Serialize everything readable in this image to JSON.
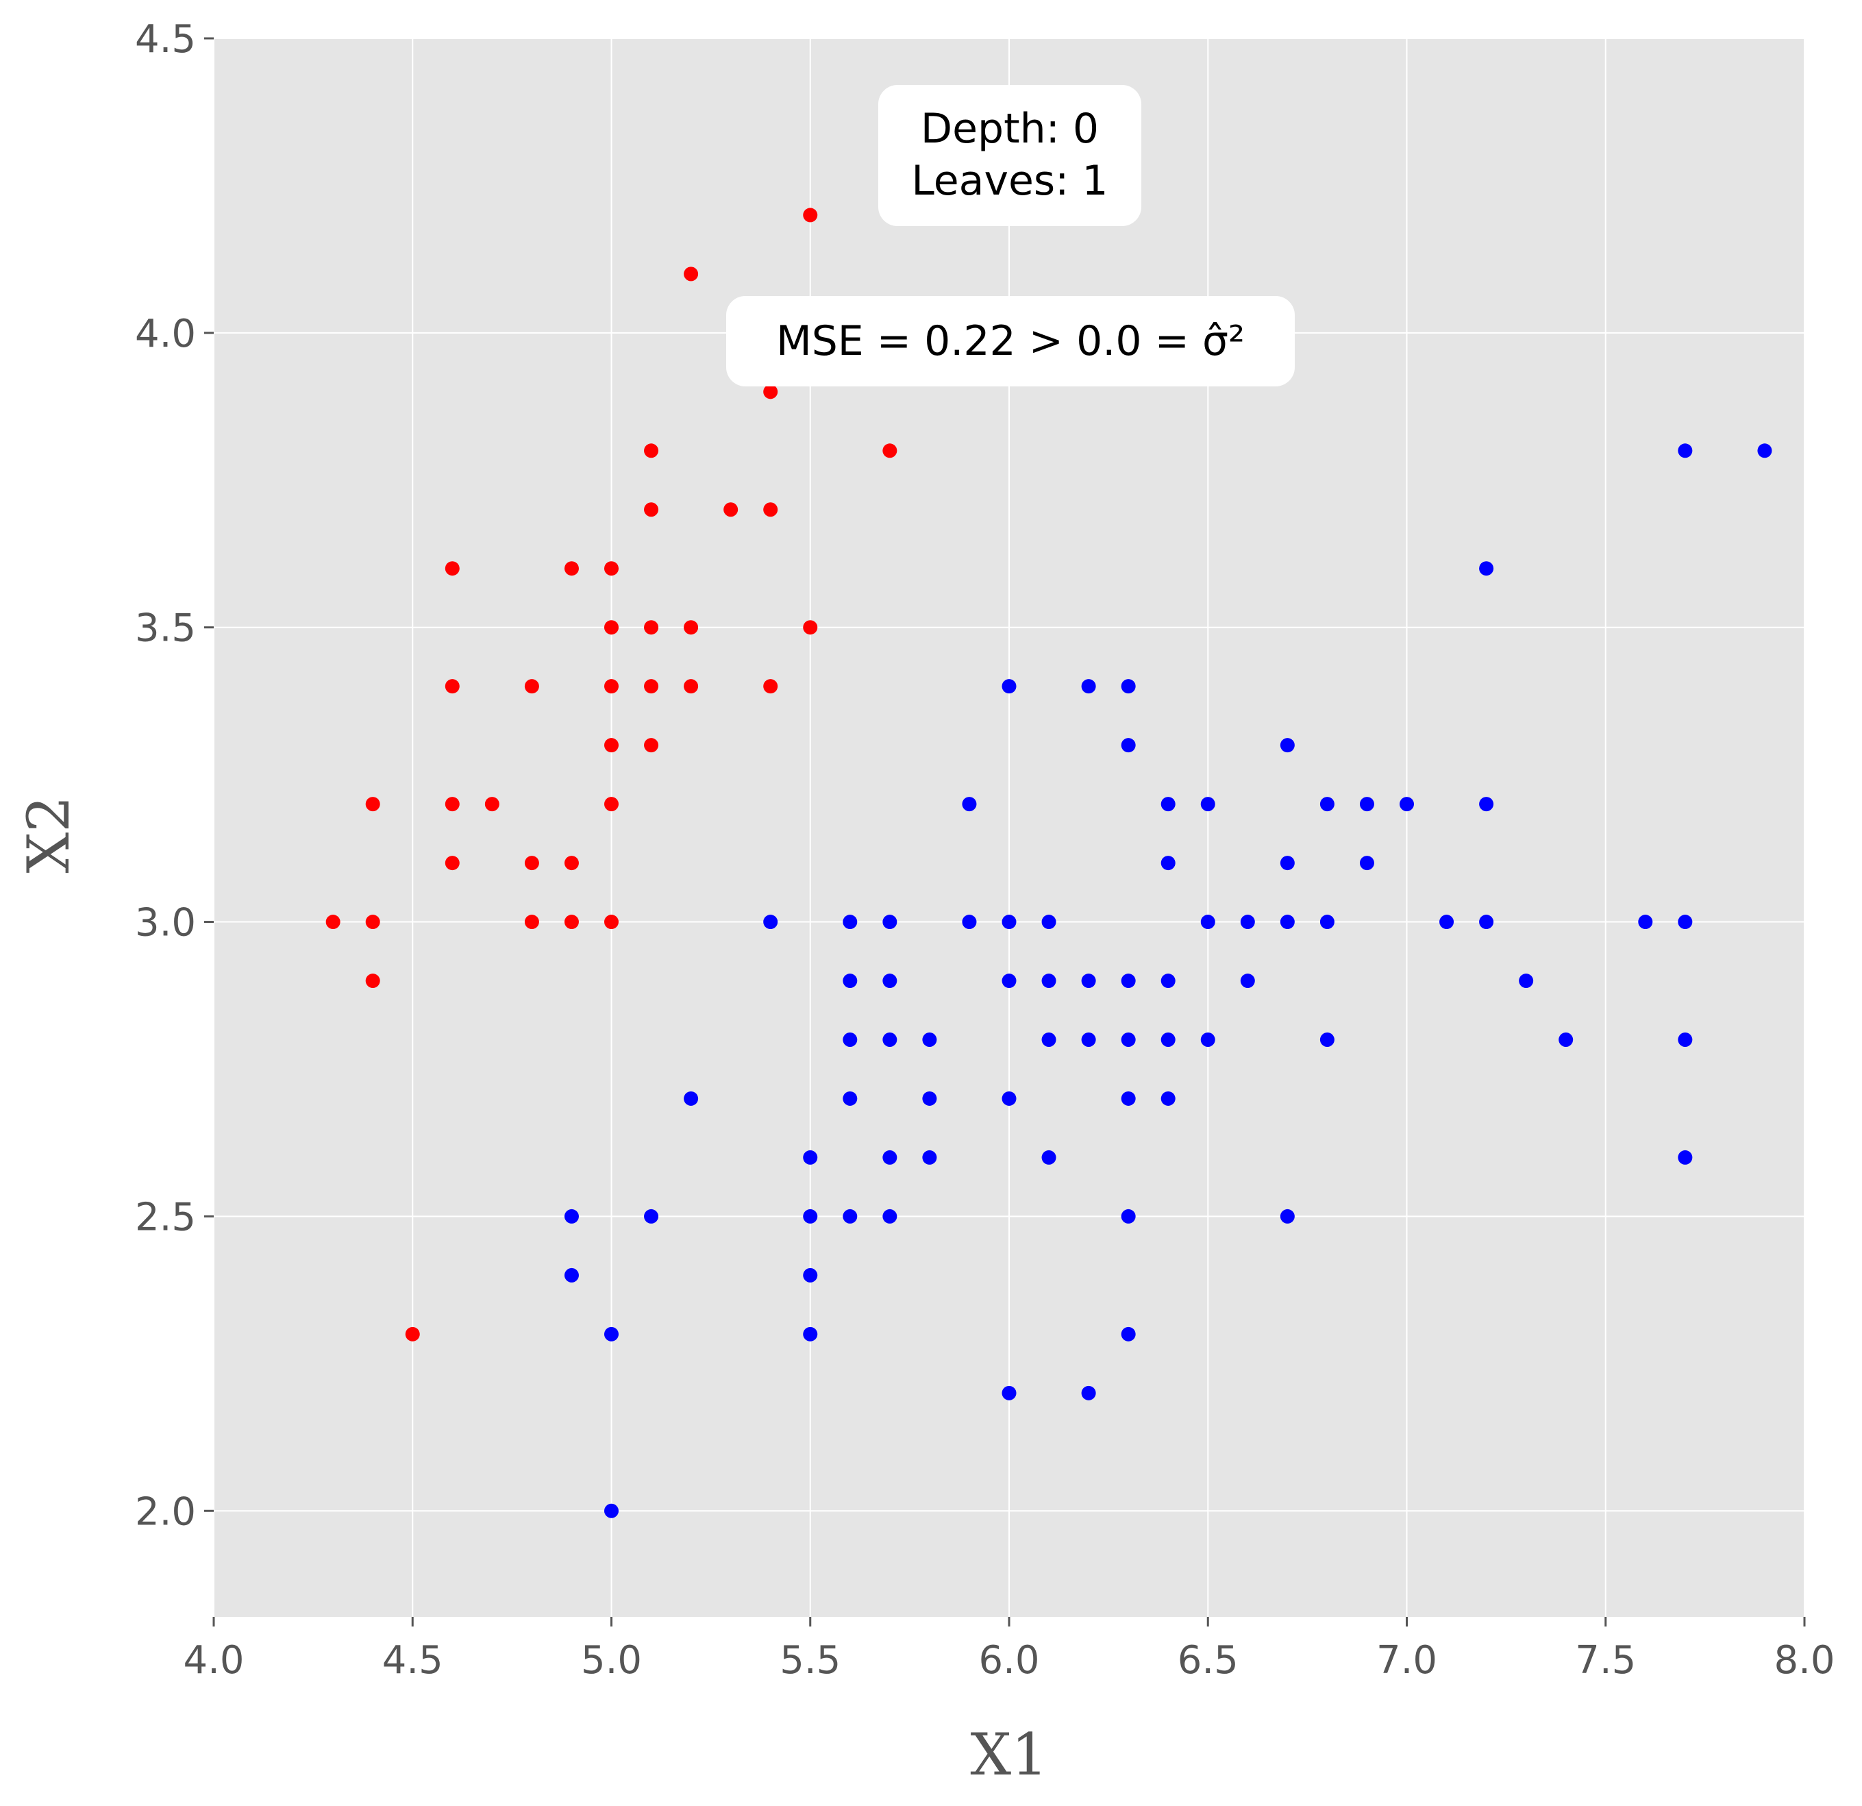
{
  "chart_data": {
    "type": "scatter",
    "title": "",
    "xlabel": "X1",
    "ylabel": "X2",
    "xlim": [
      4.0,
      8.0
    ],
    "ylim": [
      1.82,
      4.5
    ],
    "xticks": [
      "4.0",
      "4.5",
      "5.0",
      "5.5",
      "6.0",
      "6.5",
      "7.0",
      "7.5",
      "8.0"
    ],
    "yticks": [
      "2.0",
      "2.5",
      "3.0",
      "3.5",
      "4.0",
      "4.5"
    ],
    "grid": true,
    "background": "#e5e5e5",
    "annotations": [
      {
        "lines": [
          "Depth: 0",
          "Leaves: 1"
        ]
      },
      {
        "lines": [
          "MSE = 0.22  >  0.0 = σ̂²"
        ]
      }
    ],
    "series": [
      {
        "color": "#ff0000",
        "points": [
          [
            5.5,
            4.2
          ],
          [
            5.2,
            4.1
          ],
          [
            5.4,
            3.9
          ],
          [
            5.7,
            3.8
          ],
          [
            5.1,
            3.8
          ],
          [
            5.1,
            3.7
          ],
          [
            5.3,
            3.7
          ],
          [
            5.4,
            3.7
          ],
          [
            4.6,
            3.6
          ],
          [
            4.9,
            3.6
          ],
          [
            5.0,
            3.6
          ],
          [
            5.0,
            3.5
          ],
          [
            5.1,
            3.5
          ],
          [
            5.2,
            3.5
          ],
          [
            5.5,
            3.5
          ],
          [
            4.6,
            3.4
          ],
          [
            4.8,
            3.4
          ],
          [
            5.0,
            3.4
          ],
          [
            5.1,
            3.4
          ],
          [
            5.2,
            3.4
          ],
          [
            5.4,
            3.4
          ],
          [
            5.0,
            3.3
          ],
          [
            5.1,
            3.3
          ],
          [
            4.4,
            3.2
          ],
          [
            4.6,
            3.2
          ],
          [
            4.7,
            3.2
          ],
          [
            5.0,
            3.2
          ],
          [
            4.6,
            3.1
          ],
          [
            4.8,
            3.1
          ],
          [
            4.9,
            3.1
          ],
          [
            4.3,
            3.0
          ],
          [
            4.4,
            3.0
          ],
          [
            4.8,
            3.0
          ],
          [
            4.9,
            3.0
          ],
          [
            5.0,
            3.0
          ],
          [
            4.4,
            2.9
          ],
          [
            4.5,
            2.3
          ]
        ]
      },
      {
        "color": "#0000ff",
        "points": [
          [
            7.7,
            3.8
          ],
          [
            7.9,
            3.8
          ],
          [
            7.2,
            3.6
          ],
          [
            6.0,
            3.4
          ],
          [
            6.2,
            3.4
          ],
          [
            6.3,
            3.4
          ],
          [
            6.3,
            3.3
          ],
          [
            6.7,
            3.3
          ],
          [
            5.9,
            3.2
          ],
          [
            6.4,
            3.2
          ],
          [
            6.5,
            3.2
          ],
          [
            6.8,
            3.2
          ],
          [
            6.9,
            3.2
          ],
          [
            7.0,
            3.2
          ],
          [
            7.2,
            3.2
          ],
          [
            6.4,
            3.1
          ],
          [
            6.7,
            3.1
          ],
          [
            6.9,
            3.1
          ],
          [
            5.4,
            3.0
          ],
          [
            5.6,
            3.0
          ],
          [
            5.7,
            3.0
          ],
          [
            5.9,
            3.0
          ],
          [
            6.0,
            3.0
          ],
          [
            6.1,
            3.0
          ],
          [
            6.5,
            3.0
          ],
          [
            6.6,
            3.0
          ],
          [
            6.7,
            3.0
          ],
          [
            6.8,
            3.0
          ],
          [
            7.1,
            3.0
          ],
          [
            7.2,
            3.0
          ],
          [
            7.6,
            3.0
          ],
          [
            7.7,
            3.0
          ],
          [
            5.6,
            2.9
          ],
          [
            5.7,
            2.9
          ],
          [
            6.0,
            2.9
          ],
          [
            6.1,
            2.9
          ],
          [
            6.2,
            2.9
          ],
          [
            6.3,
            2.9
          ],
          [
            6.4,
            2.9
          ],
          [
            6.6,
            2.9
          ],
          [
            7.3,
            2.9
          ],
          [
            5.6,
            2.8
          ],
          [
            5.7,
            2.8
          ],
          [
            5.8,
            2.8
          ],
          [
            6.1,
            2.8
          ],
          [
            6.2,
            2.8
          ],
          [
            6.3,
            2.8
          ],
          [
            6.4,
            2.8
          ],
          [
            6.5,
            2.8
          ],
          [
            6.8,
            2.8
          ],
          [
            7.4,
            2.8
          ],
          [
            7.7,
            2.8
          ],
          [
            5.2,
            2.7
          ],
          [
            5.6,
            2.7
          ],
          [
            5.8,
            2.7
          ],
          [
            6.0,
            2.7
          ],
          [
            6.3,
            2.7
          ],
          [
            6.4,
            2.7
          ],
          [
            5.5,
            2.6
          ],
          [
            5.7,
            2.6
          ],
          [
            5.8,
            2.6
          ],
          [
            6.1,
            2.6
          ],
          [
            7.7,
            2.6
          ],
          [
            4.9,
            2.5
          ],
          [
            5.1,
            2.5
          ],
          [
            5.5,
            2.5
          ],
          [
            5.6,
            2.5
          ],
          [
            5.7,
            2.5
          ],
          [
            6.3,
            2.5
          ],
          [
            6.7,
            2.5
          ],
          [
            4.9,
            2.4
          ],
          [
            5.5,
            2.4
          ],
          [
            5.0,
            2.3
          ],
          [
            5.5,
            2.3
          ],
          [
            6.3,
            2.3
          ],
          [
            6.0,
            2.2
          ],
          [
            6.2,
            2.2
          ],
          [
            5.0,
            2.0
          ]
        ]
      }
    ]
  }
}
